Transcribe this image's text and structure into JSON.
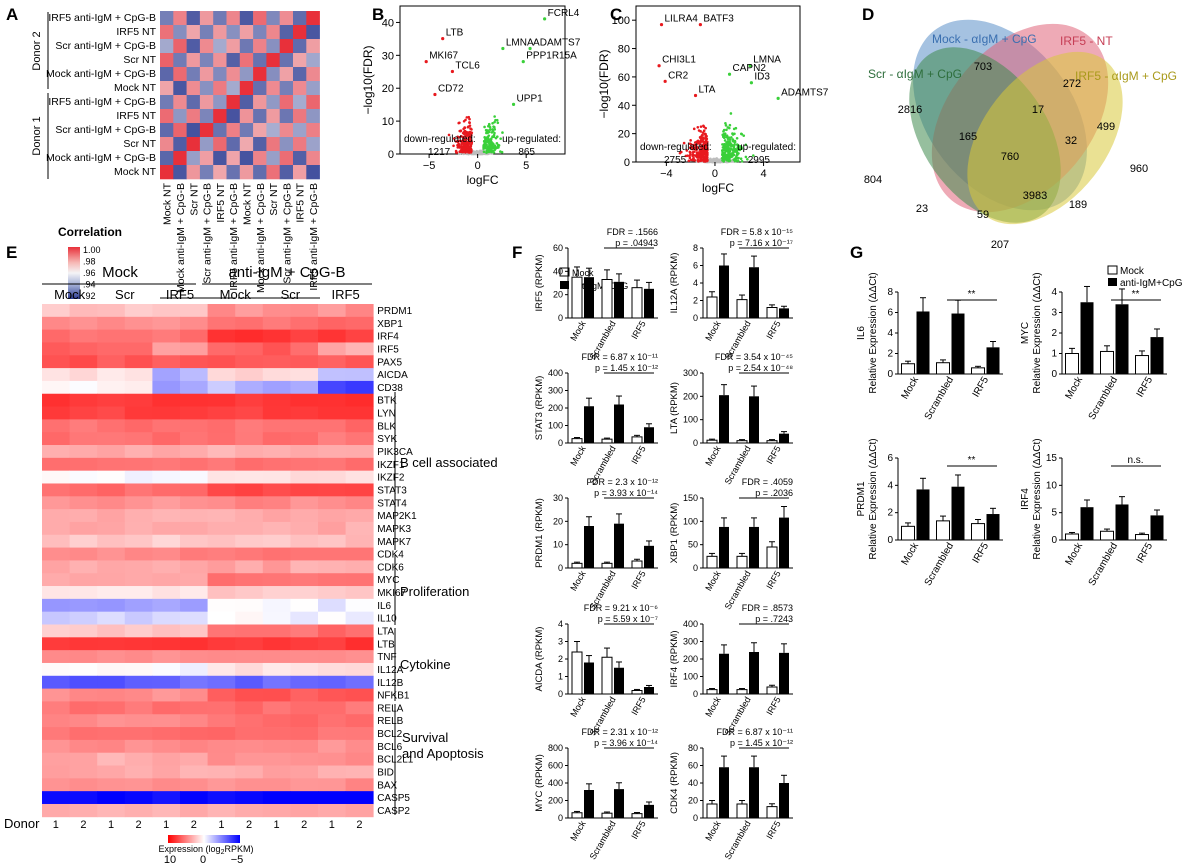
{
  "panel_letters": {
    "a": "A",
    "b": "B",
    "c": "C",
    "d": "D",
    "e": "E",
    "f": "F",
    "g": "G"
  },
  "panelA": {
    "row_labels": [
      "IRF5 anti-IgM + CpG-B",
      "IRF5 NT",
      "Scr anti-IgM + CpG-B",
      "Scr NT",
      "Mock anti-IgM + CpG-B",
      "Mock NT",
      "IRF5 anti-IgM + CpG-B",
      "IRF5 NT",
      "Scr anti-IgM + CpG-B",
      "Scr NT",
      "Mock anti-IgM + CpG-B",
      "Mock NT"
    ],
    "col_labels": [
      "Mock NT",
      "Mock anti-IgM + CpG-B",
      "Scr NT",
      "Scr anti-IgM + CpG-B",
      "IRF5 NT",
      "IRF5 anti-IgM + CpG-B",
      "Mock NT",
      "Mock anti-IgM + CpG-B",
      "Scr NT",
      "Scr anti-IgM + CpG-B",
      "IRF5 NT",
      "IRF5 anti-IgM + CpG-B"
    ],
    "donor2": "Donor 2",
    "donor1": "Donor 1",
    "legend_title": "Correlation",
    "legend_ticks": [
      "1.00",
      ".98",
      ".96",
      ".94",
      ".92"
    ]
  },
  "panelD": {
    "sets": [
      "Mock - αIgM + CpG",
      "IRF5 - NT",
      "Scr - αIgM + CpG",
      "IRF5 - αIgM + CpG"
    ],
    "set_colors": [
      "#5b8fc9",
      "#e0657a",
      "#3f8a4f",
      "#d9c83a"
    ],
    "counts": [
      "703",
      "272",
      "2816",
      "17",
      "499",
      "804",
      "165",
      "32",
      "960",
      "760",
      "23",
      "59",
      "189",
      "3983",
      "207"
    ]
  },
  "panelE": {
    "group_mock": "Mock",
    "group_stim": "anti-IgM + CpG-B",
    "sub_labels": [
      "Mock",
      "Scr",
      "IRF5",
      "Mock",
      "Scr",
      "IRF5"
    ],
    "donor_label": "Donor",
    "donor_nums": [
      "1",
      "2",
      "1",
      "2",
      "1",
      "2",
      "1",
      "2",
      "1",
      "2",
      "1",
      "2"
    ],
    "genes": [
      "PRDM1",
      "XBP1",
      "IRF4",
      "IRF5",
      "PAX5",
      "AICDA",
      "CD38",
      "BTK",
      "LYN",
      "BLK",
      "SYK",
      "PIK3CA",
      "IKZF1",
      "IKZF2",
      "STAT3",
      "STAT4",
      "MAP2K1",
      "MAPK3",
      "MAPK7",
      "CDK4",
      "CDK6",
      "MYC",
      "MKI67",
      "IL6",
      "IL10",
      "LTA",
      "LTB",
      "TNF",
      "IL12A",
      "IL12B",
      "NFKB1",
      "RELA",
      "RELB",
      "BCL2",
      "BCL6",
      "BCL2L1",
      "BID",
      "BAX",
      "CASP5",
      "CASP2"
    ],
    "categories": [
      "B cell associated",
      "Proliferation",
      "Cytokine",
      "Survival",
      "and Apoptosis"
    ],
    "legend_title_main": "Expression (log",
    "legend_title_sub": "2",
    "legend_title_end": "RPKM)",
    "legend_ticks": [
      "10",
      "0",
      "−5"
    ]
  },
  "chart_data": [
    {
      "type": "heatmap",
      "title": "A",
      "rows": [
        "IRF5 anti-IgM + CpG-B",
        "IRF5 NT",
        "Scr anti-IgM + CpG-B",
        "Scr NT",
        "Mock anti-IgM + CpG-B",
        "Mock NT",
        "IRF5 anti-IgM + CpG-B",
        "IRF5 NT",
        "Scr anti-IgM + CpG-B",
        "Scr NT",
        "Mock anti-IgM + CpG-B",
        "Mock NT"
      ],
      "columns": [
        "Mock NT",
        "Mock anti-IgM + CpG-B",
        "Scr NT",
        "Scr anti-IgM + CpG-B",
        "IRF5 NT",
        "IRF5 anti-IgM + CpG-B",
        "Mock NT",
        "Mock anti-IgM + CpG-B",
        "Scr NT",
        "Scr anti-IgM + CpG-B",
        "IRF5 NT",
        "IRF5 anti-IgM + CpG-B"
      ],
      "value_range": [
        0.92,
        1.0
      ]
    },
    {
      "type": "scatter",
      "title": "B",
      "xlabel": "logFC",
      "ylabel": "−log10(FDR)",
      "xticks": [
        "−5",
        "0",
        "5"
      ],
      "yticks": [
        "0",
        "10",
        "20",
        "30",
        "40"
      ],
      "xlim": [
        -8,
        9
      ],
      "ylim": [
        0,
        45
      ],
      "labels": [
        {
          "text": "FCRL4",
          "x": 6.9,
          "y": 42
        },
        {
          "text": "LTB",
          "x": -3.6,
          "y": 36
        },
        {
          "text": "ADAMTS7",
          "x": 5.4,
          "y": 33
        },
        {
          "text": "LMNA",
          "x": 2.6,
          "y": 33
        },
        {
          "text": "MKI67",
          "x": -5.3,
          "y": 29
        },
        {
          "text": "PPP1R15A",
          "x": 4.7,
          "y": 29
        },
        {
          "text": "TCL6",
          "x": -2.6,
          "y": 26
        },
        {
          "text": "CD72",
          "x": -4.4,
          "y": 19
        },
        {
          "text": "UPP1",
          "x": 3.7,
          "y": 16
        }
      ],
      "down_label": "down-regulated:",
      "down_count": "1217",
      "up_label": "up-regulated:",
      "up_count": "865"
    },
    {
      "type": "scatter",
      "title": "C",
      "xlabel": "logFC",
      "ylabel": "−log10(FDR)",
      "xticks": [
        "−4",
        "0",
        "4"
      ],
      "yticks": [
        "0",
        "20",
        "40",
        "60",
        "80",
        "100"
      ],
      "xlim": [
        -6.5,
        7
      ],
      "ylim": [
        0,
        110
      ],
      "labels": [
        {
          "text": "LILRA4",
          "x": -4.4,
          "y": 99
        },
        {
          "text": "BATF3",
          "x": -1.2,
          "y": 99
        },
        {
          "text": "CHI3L1",
          "x": -4.6,
          "y": 70
        },
        {
          "text": "LMNA",
          "x": 2.9,
          "y": 70
        },
        {
          "text": "CAPN2",
          "x": 1.2,
          "y": 64
        },
        {
          "text": "CR2",
          "x": -4.1,
          "y": 59
        },
        {
          "text": "ID3",
          "x": 3.0,
          "y": 58
        },
        {
          "text": "LTA",
          "x": -1.6,
          "y": 49
        },
        {
          "text": "ADAMTS7",
          "x": 5.2,
          "y": 47
        }
      ],
      "down_label": "down-regulated:",
      "down_count": "2755",
      "up_label": "up-regulated:",
      "up_count": "2995"
    },
    {
      "type": "bar",
      "title": "F",
      "categories": [
        "Mock",
        "Scrambled",
        "IRF5"
      ],
      "legend": [
        "Mock",
        "anti-IgM+CpG"
      ],
      "panels": [
        {
          "gene": "IRF5",
          "ylabel": "IRF5 (RPKM)",
          "yticks": [
            "0",
            "20",
            "40",
            "60"
          ],
          "ymax": 60,
          "mock": [
            35,
            33,
            26
          ],
          "stim": [
            35,
            31,
            25
          ],
          "stats": [
            "FDR = .1566",
            "p = .04943"
          ]
        },
        {
          "gene": "IL12A",
          "ylabel": "IL12A (RPKM)",
          "yticks": [
            "0",
            "2",
            "4",
            "6",
            "8"
          ],
          "ymax": 8,
          "mock": [
            2.4,
            2.1,
            1.2
          ],
          "stim": [
            6.0,
            5.8,
            1.1
          ],
          "stats": [
            "FDR = 5.8 x 10⁻¹⁵",
            "p = 7.16 x 10⁻¹⁷"
          ]
        },
        {
          "gene": "STAT3",
          "ylabel": "STAT3 (RPKM)",
          "yticks": [
            "0",
            "100",
            "200",
            "300",
            "400"
          ],
          "ymax": 400,
          "mock": [
            25,
            22,
            35
          ],
          "stim": [
            210,
            220,
            90
          ],
          "stats": [
            "FDR = 6.87 x 10⁻¹¹",
            "p = 1.45 x 10⁻¹²"
          ]
        },
        {
          "gene": "LTA",
          "ylabel": "LTA (RPKM)",
          "yticks": [
            "0",
            "100",
            "200",
            "300"
          ],
          "ymax": 300,
          "mock": [
            12,
            10,
            10
          ],
          "stim": [
            205,
            200,
            40
          ],
          "stats": [
            "FDR = 3.54 x 10⁻⁴⁵",
            "p = 2.54 x 10⁻⁴⁸"
          ]
        },
        {
          "gene": "PRDM1",
          "ylabel": "PRDM1 (RPKM)",
          "yticks": [
            "0",
            "10",
            "20",
            "30"
          ],
          "ymax": 30,
          "mock": [
            2,
            2,
            3
          ],
          "stim": [
            18,
            19,
            9.5
          ],
          "stats": [
            "FDR = 2.3 x 10⁻¹²",
            "p = 3.93 x 10⁻¹⁴"
          ]
        },
        {
          "gene": "XBP1",
          "ylabel": "XBP1 (RPKM)",
          "yticks": [
            "0",
            "50",
            "100",
            "150"
          ],
          "ymax": 150,
          "mock": [
            25,
            25,
            45
          ],
          "stim": [
            88,
            88,
            108
          ],
          "stats": [
            "FDR = .4059",
            "p = .2036"
          ]
        },
        {
          "gene": "AICDA",
          "ylabel": "AICDA (RPKM)",
          "yticks": [
            "0",
            "1",
            "2",
            "3",
            "4"
          ],
          "ymax": 4,
          "mock": [
            2.4,
            2.1,
            0.2
          ],
          "stim": [
            1.8,
            1.5,
            0.4
          ],
          "stats": [
            "FDR = 9.21 x 10⁻⁶",
            "p = 5.59 x 10⁻⁷"
          ]
        },
        {
          "gene": "IRF4",
          "ylabel": "IRF4 (RPKM)",
          "yticks": [
            "0",
            "100",
            "200",
            "300",
            "400"
          ],
          "ymax": 400,
          "mock": [
            25,
            25,
            40
          ],
          "stim": [
            230,
            240,
            235
          ],
          "stats": [
            "FDR = .8573",
            "p = .7243"
          ]
        },
        {
          "gene": "MYC",
          "ylabel": "MYC (RPKM)",
          "yticks": [
            "0",
            "200",
            "400",
            "600",
            "800"
          ],
          "ymax": 800,
          "mock": [
            60,
            55,
            50
          ],
          "stim": [
            320,
            330,
            150
          ],
          "stats": [
            "FDR = 2.31 x 10⁻¹²",
            "p = 3.96 x 10⁻¹⁴"
          ]
        },
        {
          "gene": "CDK4",
          "ylabel": "CDK4 (RPKM)",
          "yticks": [
            "0",
            "20",
            "40",
            "60",
            "80"
          ],
          "ymax": 80,
          "mock": [
            16,
            16,
            13
          ],
          "stim": [
            58,
            58,
            40
          ],
          "stats": [
            "FDR = 6.87 x 10⁻¹¹",
            "p = 1.45 x 10⁻¹²"
          ]
        }
      ]
    },
    {
      "type": "bar",
      "title": "G",
      "categories": [
        "Mock",
        "Scrambled",
        "IRF5"
      ],
      "legend": [
        "Mock",
        "anti-IgM+CpG"
      ],
      "panels": [
        {
          "gene": "IL6",
          "ylabel": "Relative Expression (ΔΔCt)",
          "yticks": [
            "0",
            "2",
            "4",
            "6",
            "8"
          ],
          "ymax": 8,
          "mock": [
            1,
            1.1,
            0.6
          ],
          "stim": [
            6.1,
            5.9,
            2.6
          ],
          "sig": "**"
        },
        {
          "gene": "MYC",
          "ylabel": "Relative Expression (ΔΔCt)",
          "yticks": [
            "0",
            "1",
            "2",
            "3",
            "4"
          ],
          "ymax": 4,
          "mock": [
            1,
            1.1,
            0.9
          ],
          "stim": [
            3.5,
            3.4,
            1.8
          ],
          "sig": "**"
        },
        {
          "gene": "PRDM1",
          "ylabel": "Relative Expression (ΔΔCt)",
          "yticks": [
            "0",
            "2",
            "4",
            "6"
          ],
          "ymax": 6,
          "mock": [
            1,
            1.4,
            1.2
          ],
          "stim": [
            3.7,
            3.9,
            1.9
          ],
          "sig": "**"
        },
        {
          "gene": "IRF4",
          "ylabel": "Relative Expression (ΔΔCt)",
          "yticks": [
            "0",
            "5",
            "10",
            "15"
          ],
          "ymax": 15,
          "mock": [
            1.1,
            1.6,
            1.0
          ],
          "stim": [
            6.0,
            6.5,
            4.5
          ],
          "sig": "n.s."
        }
      ]
    }
  ]
}
